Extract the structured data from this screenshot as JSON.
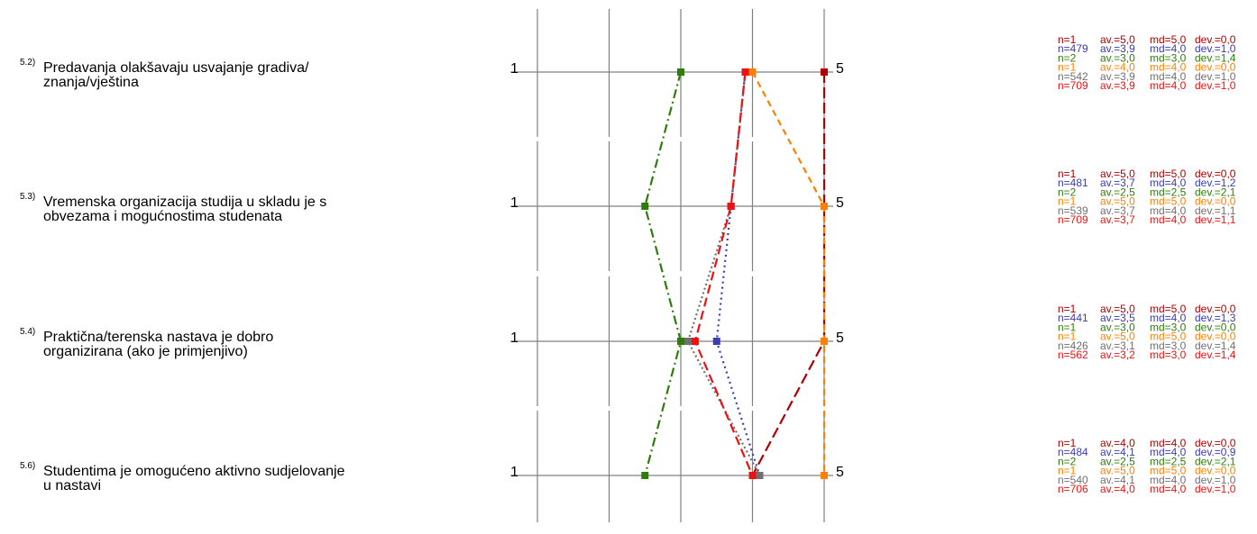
{
  "chart_data": {
    "type": "line",
    "scale": {
      "min": 1,
      "max": 5,
      "min_label": "1",
      "max_label": "5"
    },
    "grid": true,
    "series_colors": [
      "#b00000",
      "#3b3bb3",
      "#2e7d0c",
      "#ff8000",
      "#707070",
      "#ee1111"
    ],
    "questions": [
      {
        "number": "5.2)",
        "text_lines": [
          "Predavanja olakšavaju usvajanje gradiva/",
          "znanja/vještina"
        ],
        "stats": [
          {
            "n": "n=1",
            "av": "av.=5,0",
            "md": "md=5,0",
            "dev": "dev.=0,0"
          },
          {
            "n": "n=479",
            "av": "av.=3,9",
            "md": "md=4,0",
            "dev": "dev.=1,0"
          },
          {
            "n": "n=2",
            "av": "av.=3,0",
            "md": "md=3,0",
            "dev": "dev.=1,4"
          },
          {
            "n": "n=1",
            "av": "av.=4,0",
            "md": "md=4,0",
            "dev": "dev.=0,0"
          },
          {
            "n": "n=542",
            "av": "av.=3,9",
            "md": "md=4,0",
            "dev": "dev.=1,0"
          },
          {
            "n": "n=709",
            "av": "av.=3,9",
            "md": "md=4,0",
            "dev": "dev.=1,0"
          }
        ]
      },
      {
        "number": "5.3)",
        "text_lines": [
          "Vremenska organizacija studija u skladu je s",
          "obvezama i mogućnostima studenata"
        ],
        "stats": [
          {
            "n": "n=1",
            "av": "av.=5,0",
            "md": "md=5,0",
            "dev": "dev.=0,0"
          },
          {
            "n": "n=481",
            "av": "av.=3,7",
            "md": "md=4,0",
            "dev": "dev.=1,2"
          },
          {
            "n": "n=2",
            "av": "av.=2,5",
            "md": "md=2,5",
            "dev": "dev.=2,1"
          },
          {
            "n": "n=1",
            "av": "av.=5,0",
            "md": "md=5,0",
            "dev": "dev.=0,0"
          },
          {
            "n": "n=539",
            "av": "av.=3,7",
            "md": "md=4,0",
            "dev": "dev.=1,1"
          },
          {
            "n": "n=709",
            "av": "av.=3,7",
            "md": "md=4,0",
            "dev": "dev.=1,1"
          }
        ]
      },
      {
        "number": "5.4)",
        "text_lines": [
          "Praktična/terenska nastava je dobro",
          "organizirana (ako je primjenjivo)"
        ],
        "stats": [
          {
            "n": "n=1",
            "av": "av.=5,0",
            "md": "md=5,0",
            "dev": "dev.=0,0"
          },
          {
            "n": "n=441",
            "av": "av.=3,5",
            "md": "md=4,0",
            "dev": "dev.=1,3"
          },
          {
            "n": "n=1",
            "av": "av.=3,0",
            "md": "md=3,0",
            "dev": "dev.=0,0"
          },
          {
            "n": "n=1",
            "av": "av.=5,0",
            "md": "md=5,0",
            "dev": "dev.=0,0"
          },
          {
            "n": "n=426",
            "av": "av.=3,1",
            "md": "md=3,0",
            "dev": "dev.=1,4"
          },
          {
            "n": "n=562",
            "av": "av.=3,2",
            "md": "md=3,0",
            "dev": "dev.=1,4"
          }
        ]
      },
      {
        "number": "5.6)",
        "text_lines": [
          "Studentima je omogućeno aktivno sudjelovanje",
          "u nastavi"
        ],
        "stats": [
          {
            "n": "n=1",
            "av": "av.=4,0",
            "md": "md=4,0",
            "dev": "dev.=0,0"
          },
          {
            "n": "n=484",
            "av": "av.=4,1",
            "md": "md=4,0",
            "dev": "dev.=0,9"
          },
          {
            "n": "n=2",
            "av": "av.=2,5",
            "md": "md=2,5",
            "dev": "dev.=2,1"
          },
          {
            "n": "n=1",
            "av": "av.=5,0",
            "md": "md=5,0",
            "dev": "dev.=0,0"
          },
          {
            "n": "n=540",
            "av": "av.=4,1",
            "md": "md=4,0",
            "dev": "dev.=1,0"
          },
          {
            "n": "n=706",
            "av": "av.=4,0",
            "md": "md=4,0",
            "dev": "dev.=1,0"
          }
        ]
      }
    ],
    "series": [
      {
        "color": "#b00000",
        "values": [
          5.0,
          5.0,
          5.0,
          4.0
        ]
      },
      {
        "color": "#3b3bb3",
        "values": [
          3.9,
          3.7,
          3.5,
          4.1
        ]
      },
      {
        "color": "#2e7d0c",
        "values": [
          3.0,
          2.5,
          3.0,
          2.5
        ]
      },
      {
        "color": "#ff8000",
        "values": [
          4.0,
          5.0,
          5.0,
          5.0
        ]
      },
      {
        "color": "#707070",
        "values": [
          3.9,
          3.7,
          3.1,
          4.1
        ]
      },
      {
        "color": "#ee1111",
        "values": [
          3.9,
          3.7,
          3.2,
          4.0
        ]
      }
    ]
  }
}
